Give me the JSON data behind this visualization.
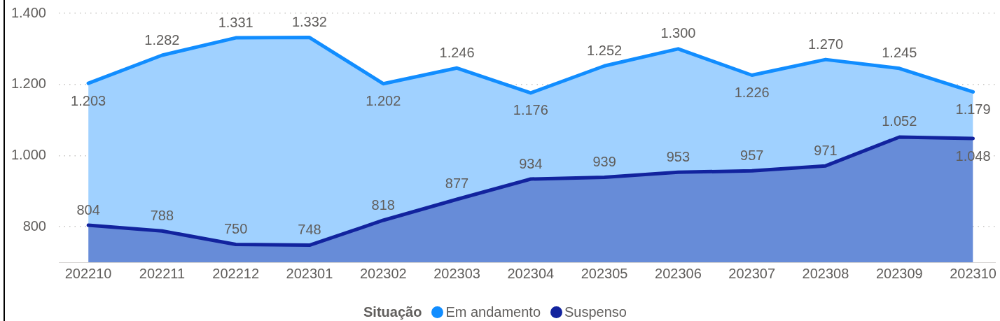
{
  "chart_data": {
    "type": "area",
    "categories": [
      "202210",
      "202211",
      "202212",
      "202301",
      "202302",
      "202303",
      "202304",
      "202305",
      "202306",
      "202307",
      "202308",
      "202309",
      "202310"
    ],
    "series": [
      {
        "name": "Em andamento",
        "color": "#118dff",
        "values": [
          1203,
          1282,
          1331,
          1332,
          1202,
          1246,
          1176,
          1252,
          1300,
          1226,
          1270,
          1245,
          1179
        ],
        "value_labels": [
          "1.203",
          "1.282",
          "1.331",
          "1.332",
          "1.202",
          "1.246",
          "1.176",
          "1.252",
          "1.300",
          "1.226",
          "1.270",
          "1.245",
          "1.179"
        ]
      },
      {
        "name": "Suspenso",
        "color": "#12239e",
        "values": [
          804,
          788,
          750,
          748,
          818,
          877,
          934,
          939,
          953,
          957,
          971,
          1052,
          1048
        ],
        "value_labels": [
          "804",
          "788",
          "750",
          "748",
          "818",
          "877",
          "934",
          "939",
          "953",
          "957",
          "971",
          "1.052",
          "1.048"
        ]
      }
    ],
    "ylim": [
      700,
      1400
    ],
    "yticks": [
      800,
      {
        "value": 1000,
        "label": "1.000"
      },
      {
        "value": 1200,
        "label": "1.200"
      },
      {
        "value": 1400,
        "label": "1.400"
      }
    ],
    "grid": "y",
    "legend": "bottom",
    "legend_title": "Situação"
  }
}
